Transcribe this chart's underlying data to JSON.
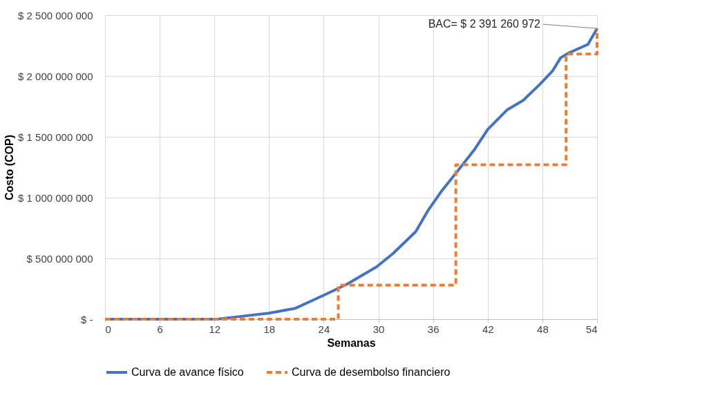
{
  "chart_data": {
    "type": "line",
    "xlabel": "Semanas",
    "ylabel": "Costo (COP)",
    "xlim": [
      0,
      54
    ],
    "xticks": [
      0,
      6,
      12,
      18,
      24,
      30,
      36,
      42,
      48,
      54
    ],
    "ylim": [
      0,
      2500000000
    ],
    "yticks": [
      {
        "value": 0,
        "label": "$ -"
      },
      {
        "value": 500000000,
        "label": "$ 500 000 000"
      },
      {
        "value": 1000000000,
        "label": "$ 1 000 000 000"
      },
      {
        "value": 1500000000,
        "label": "$ 1 500 000 000"
      },
      {
        "value": 2000000000,
        "label": "$ 2 000 000 000"
      },
      {
        "value": 2500000000,
        "label": "$ 2 500 000 000"
      }
    ],
    "grid": true,
    "legend": "bottom",
    "line_style": "solid",
    "series": [
      {
        "name": "Curva de avance físico",
        "color": "#4472c4",
        "x": [
          0,
          12.3,
          14.8,
          18,
          20.9,
          24.1,
          26.6,
          29.8,
          31.6,
          34.1,
          35.5,
          37,
          38.5,
          40.5,
          42,
          44.1,
          45.9,
          47.7,
          49.1,
          50,
          50.9,
          53,
          54
        ],
        "values": [
          0,
          0,
          22000000,
          50000000,
          90000000,
          200000000,
          290000000,
          430000000,
          540000000,
          720000000,
          900000000,
          1060000000,
          1200000000,
          1390000000,
          1560000000,
          1720000000,
          1800000000,
          1930000000,
          2040000000,
          2150000000,
          2190000000,
          2260000000,
          2391260972
        ]
      },
      {
        "name": "Curva de desembolso financiero",
        "color": "#ed7d31",
        "type": "step",
        "line_style": "dashed",
        "x": [
          0,
          25.6,
          38.5,
          50.6,
          54
        ],
        "values": [
          0,
          280000000,
          1270000000,
          2180000000,
          2391260972
        ]
      }
    ],
    "annotations": [
      {
        "text": "BAC= $ 2 391 260 972",
        "x": 54,
        "y": 2391260972
      }
    ]
  }
}
